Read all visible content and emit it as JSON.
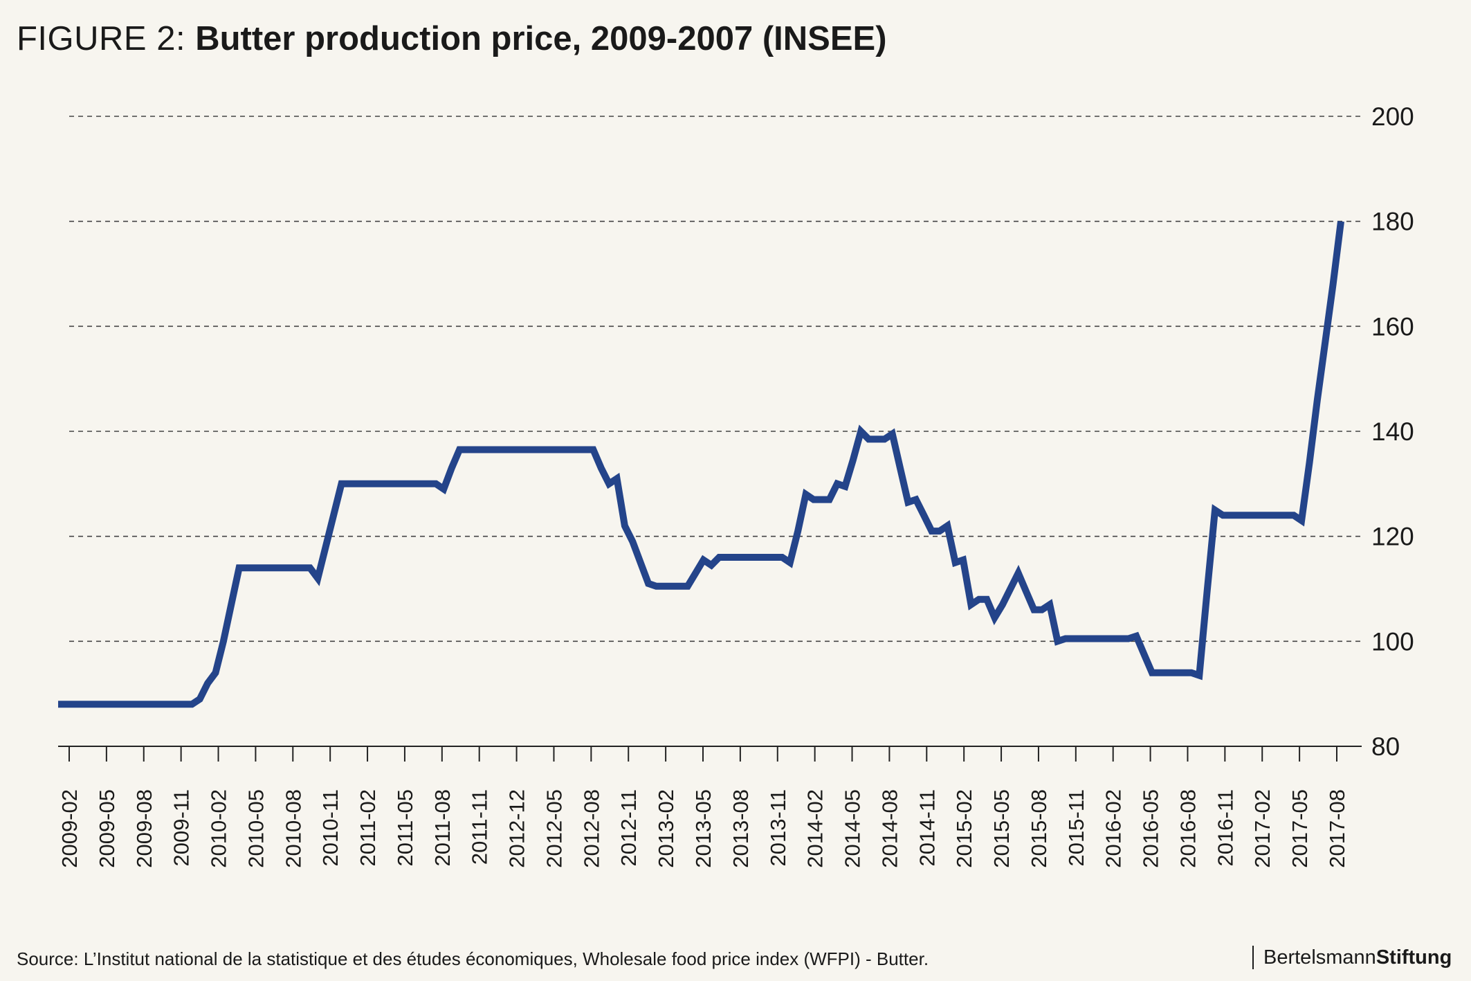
{
  "figure": {
    "label": "FIGURE 2: ",
    "title": "Butter production price, 2009-2007 (INSEE)"
  },
  "source": "Source: L’Institut national de la statistique et des études économiques, Wholesale food price index (WFPI) - Butter.",
  "brand": {
    "part1": "Bertelsmann",
    "part2": "Stiftung"
  },
  "colors": {
    "line": "#24448a",
    "grid": "#444444",
    "background": "#f7f5ef"
  },
  "chart_data": {
    "type": "line",
    "title": "Butter production price, 2009-2007 (INSEE)",
    "xlabel": "",
    "ylabel": "",
    "ylim": [
      80,
      200
    ],
    "yticks": [
      80,
      100,
      120,
      140,
      160,
      180,
      200
    ],
    "y_axis_position": "right",
    "grid": "horizontal dashed",
    "legend": "none",
    "x_tick_labels": [
      "2009-02",
      "2009-05",
      "2009-08",
      "2009-11",
      "2010-02",
      "2010-05",
      "2010-08",
      "2010-11",
      "2011-02",
      "2011-05",
      "2011-08",
      "2011-11",
      "2012-12",
      "2012-05",
      "2012-08",
      "2012-11",
      "2013-02",
      "2013-05",
      "2013-08",
      "2013-11",
      "2014-02",
      "2014-05",
      "2014-08",
      "2014-11",
      "2015-02",
      "2015-05",
      "2015-08",
      "2015-11",
      "2016-02",
      "2016-05",
      "2016-08",
      "2016-11",
      "2017-02",
      "2017-05",
      "2017-08"
    ],
    "series": [
      {
        "values": [
          88,
          88,
          88,
          88,
          88,
          88,
          88,
          88,
          88,
          88,
          88,
          88,
          88,
          88,
          88,
          88,
          88,
          88,
          89,
          92,
          94,
          100,
          107,
          114,
          114,
          114,
          114,
          114,
          114,
          114,
          114,
          114,
          114,
          112,
          118,
          124,
          130,
          130,
          130,
          130,
          130,
          130,
          130,
          130,
          130,
          130,
          130,
          130,
          130,
          129,
          133,
          136.5,
          136.5,
          136.5,
          136.5,
          136.5,
          136.5,
          136.5,
          136.5,
          136.5,
          136.5,
          136.5,
          136.5,
          136.5,
          136.5,
          136.5,
          136.5,
          136.5,
          136.5,
          133,
          130,
          131,
          122,
          119,
          115,
          111,
          110.5,
          110.5,
          110.5,
          110.5,
          110.5,
          113,
          115.5,
          114.5,
          116,
          116,
          116,
          116,
          116,
          116,
          116,
          116,
          116,
          115,
          121,
          128,
          127,
          127,
          127,
          130,
          129.5,
          134.5,
          140,
          138.5,
          138.5,
          138.5,
          139.5,
          133,
          126.5,
          127,
          124,
          121,
          121,
          122,
          115,
          115.5,
          107,
          108,
          108,
          104.5,
          107,
          110,
          113,
          109.5,
          106,
          106,
          107,
          100,
          100.5,
          100.5,
          100.5,
          100.5,
          100.5,
          100.5,
          100.5,
          100.5,
          100.5,
          101,
          97.5,
          94,
          94,
          94,
          94,
          94,
          94,
          93.5,
          109.5,
          125,
          124,
          124,
          124,
          124,
          124,
          124,
          124,
          124,
          124,
          124,
          123,
          134,
          146,
          157,
          168,
          180
        ]
      }
    ]
  }
}
